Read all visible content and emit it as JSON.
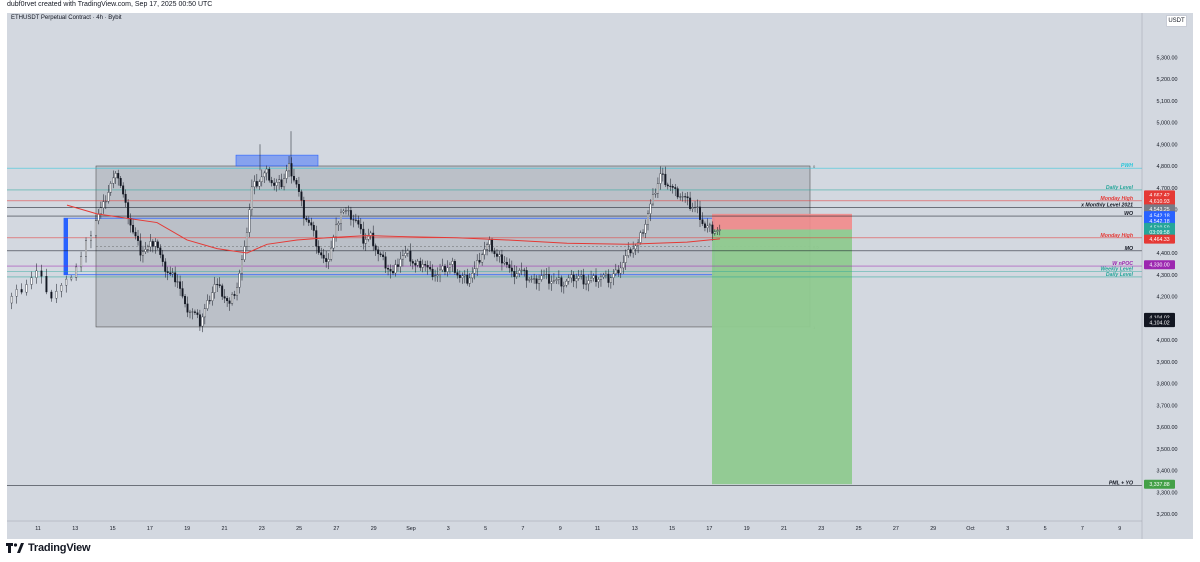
{
  "header": {
    "credit": "dubf0rvet created with TradingView.com, Sep 17, 2025 00:50 UTC"
  },
  "chart_header": {
    "symbol": "ETHUSDT Perpetual Contract · 4h · Bybit",
    "currency": "USDT"
  },
  "footer": {
    "brand": "TradingView"
  },
  "colors": {
    "bg": "#d3d8e0",
    "up": "#ffffff",
    "down": "#131722",
    "vwap": "#e53935",
    "sl_zone": "#f28b8b",
    "tp_zone": "#8fca8f",
    "range_box": "#a8adb5",
    "blue": "#2962ff"
  },
  "chart_data": {
    "type": "candlestick",
    "title": "ETHUSDT Perpetual Contract · 4h · Bybit",
    "ylim": [
      3200,
      5350
    ],
    "y_ticks": [
      "5,300.00",
      "5,200.00",
      "5,100.00",
      "5,000.00",
      "4,900.00",
      "4,800.00",
      "4,700.00",
      "4,600.00",
      "4,400.00",
      "4,300.00",
      "4,200.00",
      "4,000.00",
      "3,900.00",
      "3,800.00",
      "3,700.00",
      "3,600.00",
      "3,500.00",
      "3,400.00",
      "3,300.00",
      "3,200.00"
    ],
    "x_ticks": [
      "11",
      "13",
      "15",
      "17",
      "19",
      "21",
      "23",
      "25",
      "27",
      "29",
      "Sep",
      "3",
      "5",
      "7",
      "9",
      "11",
      "13",
      "15",
      "17",
      "19",
      "21",
      "23",
      "25",
      "27",
      "29",
      "Oct",
      "3",
      "5",
      "7",
      "9"
    ],
    "close_path": [
      [
        0,
        4170
      ],
      [
        2,
        4240
      ],
      [
        4,
        4310
      ],
      [
        6,
        4200
      ],
      [
        8,
        4260
      ],
      [
        10,
        4380
      ],
      [
        12,
        4560
      ],
      [
        13,
        4620
      ],
      [
        14,
        4720
      ],
      [
        15,
        4760
      ],
      [
        16,
        4620
      ],
      [
        17,
        4500
      ],
      [
        18,
        4410
      ],
      [
        19,
        4420
      ],
      [
        20,
        4460
      ],
      [
        21,
        4340
      ],
      [
        22,
        4300
      ],
      [
        23,
        4280
      ],
      [
        24,
        4150
      ],
      [
        25,
        4130
      ],
      [
        26,
        4080
      ],
      [
        27,
        4170
      ],
      [
        28,
        4260
      ],
      [
        29,
        4220
      ],
      [
        30,
        4160
      ],
      [
        31,
        4250
      ],
      [
        32,
        4410
      ],
      [
        33,
        4700
      ],
      [
        34,
        4740
      ],
      [
        35,
        4770
      ],
      [
        36,
        4710
      ],
      [
        37,
        4720
      ],
      [
        38,
        4800
      ],
      [
        39,
        4720
      ],
      [
        40,
        4580
      ],
      [
        41,
        4520
      ],
      [
        42,
        4410
      ],
      [
        43,
        4340
      ],
      [
        44,
        4470
      ],
      [
        45,
        4600
      ],
      [
        46,
        4580
      ],
      [
        47,
        4550
      ],
      [
        48,
        4460
      ],
      [
        49,
        4480
      ],
      [
        50,
        4400
      ],
      [
        51,
        4350
      ],
      [
        52,
        4300
      ],
      [
        53,
        4380
      ],
      [
        54,
        4390
      ],
      [
        55,
        4340
      ],
      [
        56,
        4360
      ],
      [
        57,
        4310
      ],
      [
        58,
        4300
      ],
      [
        59,
        4330
      ],
      [
        60,
        4350
      ],
      [
        61,
        4290
      ],
      [
        62,
        4280
      ],
      [
        63,
        4320
      ],
      [
        64,
        4400
      ],
      [
        65,
        4440
      ],
      [
        66,
        4380
      ],
      [
        67,
        4370
      ],
      [
        68,
        4300
      ],
      [
        69,
        4320
      ],
      [
        70,
        4290
      ],
      [
        71,
        4270
      ],
      [
        72,
        4300
      ],
      [
        73,
        4280
      ],
      [
        74,
        4270
      ],
      [
        75,
        4260
      ],
      [
        76,
        4280
      ],
      [
        77,
        4290
      ],
      [
        78,
        4270
      ],
      [
        79,
        4280
      ],
      [
        80,
        4290
      ],
      [
        81,
        4280
      ],
      [
        82,
        4310
      ],
      [
        83,
        4360
      ],
      [
        84,
        4420
      ],
      [
        85,
        4440
      ],
      [
        86,
        4540
      ],
      [
        87,
        4650
      ],
      [
        88,
        4760
      ],
      [
        89,
        4720
      ],
      [
        90,
        4680
      ],
      [
        91,
        4660
      ],
      [
        92,
        4620
      ],
      [
        93,
        4600
      ],
      [
        94,
        4520
      ],
      [
        95,
        4510
      ],
      [
        96,
        4500
      ]
    ],
    "annotations": [
      {
        "label": "PWH",
        "price": 4790
      },
      {
        "label": "Daily Level",
        "price": 4690
      },
      {
        "label": "Monday High",
        "price": 4640
      },
      {
        "label": "x Monthly Level 2021",
        "price": 4610
      },
      {
        "label": "WO",
        "price": 4570
      },
      {
        "label": "Monday High",
        "price": 4470
      },
      {
        "label": "MO",
        "price": 4410
      },
      {
        "label": "W nPOC",
        "price": 4340
      },
      {
        "label": "Weekly Level",
        "price": 4315
      },
      {
        "label": "Daily Level",
        "price": 4290
      },
      {
        "label": "PML + YO",
        "price": 3330
      }
    ],
    "price_badges": [
      {
        "text": "4,667.42",
        "color": "#e53935",
        "price": 4667
      },
      {
        "text": "4,610.93",
        "color": "#e53935",
        "price": 4640
      },
      {
        "text": "4,543.25",
        "color": "#787b86",
        "price": 4603
      },
      {
        "text": "4,542.18",
        "color": "#2962ff",
        "price": 4572
      },
      {
        "text": "4,542.18",
        "color": "#2962ff",
        "price": 4546
      },
      {
        "text": "4,510.59",
        "color": "#26a69a",
        "price": 4518
      },
      {
        "text": "03:09:58",
        "color": "#26a69a",
        "price": 4497
      },
      {
        "text": "4,464.33",
        "color": "#e53935",
        "price": 4464
      },
      {
        "text": "4,330.00",
        "color": "#9c27b0",
        "price": 4346
      },
      {
        "text": "4,104.02",
        "color": "#131722",
        "price": 4104
      },
      {
        "text": "4,104.02",
        "color": "#131722",
        "price": 4080
      },
      {
        "text": "3,337.88",
        "color": "#43a047",
        "price": 3337
      }
    ],
    "fib_labels": [
      {
        "text": "0",
        "price": 4800
      },
      {
        "text": "0.5",
        "price": 4430
      },
      {
        "text": "1",
        "price": 4060
      }
    ]
  }
}
